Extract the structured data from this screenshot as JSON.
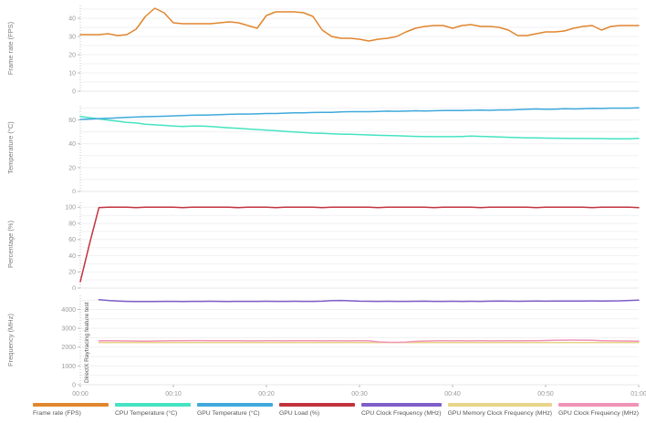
{
  "legend": {
    "items": [
      {
        "label": "Frame rate (FPS)",
        "color": "#E0862E"
      },
      {
        "label": "CPU Temperature (°C)",
        "color": "#45E3C2"
      },
      {
        "label": "GPU Temperature (°C)",
        "color": "#3FA9DC"
      },
      {
        "label": "GPU Load (%)",
        "color": "#C2333F"
      },
      {
        "label": "CPU Clock Frequency (MHz)",
        "color": "#7E5EC8"
      },
      {
        "label": "GPU Memory Clock Frequency (MHz)",
        "color": "#E8D48A"
      },
      {
        "label": "GPU Clock Frequency (MHz)",
        "color": "#F193B7"
      }
    ]
  },
  "xaxis": {
    "ticks": [
      "00:00",
      "00:10",
      "00:20",
      "00:30",
      "00:40",
      "00:50",
      "01:00"
    ],
    "tick_seconds": [
      0,
      10,
      20,
      30,
      40,
      50,
      60
    ],
    "xlim_seconds": [
      0,
      60
    ]
  },
  "chart_data": [
    {
      "type": "line",
      "ylabel": "Frame rate (FPS)",
      "ylim": [
        0,
        47
      ],
      "yticks": [
        0,
        10,
        20,
        30,
        40
      ],
      "grid_step": 5,
      "series": [
        {
          "name": "Frame rate (FPS)",
          "color": "#E0862E",
          "start": 0,
          "values": [
            31,
            31,
            31,
            31.5,
            30.5,
            31,
            34,
            41,
            45.5,
            43,
            37.5,
            37,
            37,
            37,
            37,
            37.5,
            38,
            37.5,
            36,
            34.5,
            41.5,
            43.5,
            43.5,
            43.5,
            43,
            41,
            33.5,
            30,
            29,
            29,
            28.5,
            27.5,
            28.5,
            29,
            30,
            32.5,
            34.5,
            35.5,
            36,
            36,
            34.5,
            36,
            36.5,
            35.5,
            35.5,
            35,
            33.5,
            30.5,
            30.5,
            31.5,
            32.5,
            32.5,
            33,
            34.5,
            35.5,
            36,
            33.5,
            35.5,
            36,
            36,
            36
          ]
        }
      ]
    },
    {
      "type": "line",
      "ylabel": "Temperature (°C)",
      "ylim": [
        0,
        72
      ],
      "yticks": [
        0,
        20,
        40,
        60
      ],
      "grid_step": 10,
      "series": [
        {
          "name": "CPU Temperature (°C)",
          "color": "#45E3C2",
          "start": 0,
          "values": [
            63,
            62,
            61,
            60,
            59,
            58,
            57.5,
            56.5,
            56,
            55.5,
            55,
            54.5,
            55,
            55,
            54.5,
            54,
            53.5,
            53,
            52.5,
            52,
            51.5,
            51,
            50.5,
            50,
            49.5,
            49,
            48.8,
            48.5,
            48.2,
            48,
            47.8,
            47.5,
            47.2,
            47,
            46.8,
            46.5,
            46.3,
            46.2,
            46,
            46,
            46,
            46.2,
            46.5,
            46.3,
            46,
            45.8,
            45.5,
            45.3,
            45,
            45,
            44.8,
            44.7,
            44.6,
            44.5,
            44.5,
            44.4,
            44.4,
            44.3,
            44.3,
            44.3,
            44.6
          ]
        },
        {
          "name": "GPU Temperature (°C)",
          "color": "#3FA9DC",
          "start": 0,
          "values": [
            60.5,
            60.8,
            61.2,
            61.5,
            61.8,
            62.2,
            62.5,
            62.8,
            63,
            63.2,
            63.5,
            63.8,
            64,
            64.2,
            64.3,
            64.5,
            64.8,
            65,
            65,
            65.2,
            65.5,
            65.5,
            65.8,
            66,
            66,
            66.3,
            66.5,
            66.5,
            66.8,
            67,
            67,
            67,
            67.2,
            67.5,
            67.3,
            67.5,
            67.8,
            67.6,
            67.8,
            68,
            68,
            68,
            68.2,
            68.3,
            68.2,
            68.5,
            68.5,
            68.7,
            69,
            69.3,
            69,
            69.2,
            69.5,
            69.3,
            69.5,
            69.8,
            69.7,
            70,
            70,
            70,
            70.2
          ]
        }
      ]
    },
    {
      "type": "line",
      "ylabel": "Percentage (%)",
      "ylim": [
        0,
        106
      ],
      "yticks": [
        0,
        20,
        40,
        60,
        80,
        100
      ],
      "grid_step": 10,
      "series": [
        {
          "name": "GPU Load (%)",
          "color": "#C2333F",
          "start": 0,
          "values": [
            8,
            55,
            99.5,
            100,
            100,
            100,
            99.5,
            100,
            100,
            100,
            100,
            99.5,
            100,
            100,
            100,
            100,
            100,
            99.5,
            100,
            100,
            100,
            99.5,
            100,
            100,
            100,
            100,
            99.5,
            100,
            100,
            100,
            100,
            100,
            99.5,
            100,
            100,
            100,
            100,
            100,
            99.5,
            100,
            100,
            100,
            100,
            99.5,
            100,
            100,
            100,
            100,
            100,
            99.5,
            100,
            100,
            100,
            100,
            100,
            99.5,
            100,
            100,
            100,
            100,
            99.5
          ]
        }
      ]
    },
    {
      "type": "line",
      "ylabel": "Frequency (MHz)",
      "ylim": [
        0,
        4750
      ],
      "yticks": [
        0,
        1000,
        2000,
        3000,
        4000
      ],
      "grid_step": 500,
      "annotation": "DirectX Raytracing feature test",
      "series": [
        {
          "name": "CPU Clock Frequency (MHz)",
          "color": "#7E5EC8",
          "start": 2,
          "values": [
            4520,
            4480,
            4450,
            4430,
            4420,
            4420,
            4425,
            4430,
            4430,
            4425,
            4430,
            4430,
            4435,
            4430,
            4425,
            4430,
            4430,
            4430,
            4435,
            4430,
            4430,
            4435,
            4430,
            4430,
            4440,
            4470,
            4480,
            4460,
            4440,
            4435,
            4430,
            4435,
            4430,
            4430,
            4435,
            4440,
            4430,
            4430,
            4435,
            4430,
            4435,
            4430,
            4440,
            4450,
            4440,
            4435,
            4440,
            4445,
            4440,
            4445,
            4450,
            4445,
            4450,
            4455,
            4450,
            4455,
            4460,
            4480,
            4500
          ]
        },
        {
          "name": "GPU Memory Clock Frequency (MHz)",
          "color": "#E8D48A",
          "start": 2,
          "values": [
            2240,
            2240,
            2240,
            2240,
            2240,
            2240,
            2240,
            2240,
            2240,
            2240,
            2240,
            2240,
            2240,
            2240,
            2240,
            2240,
            2240,
            2240,
            2240,
            2240,
            2240,
            2240,
            2240,
            2240,
            2240,
            2240,
            2240,
            2240,
            2240,
            2240,
            2240,
            2240,
            2240,
            2240,
            2240,
            2240,
            2240,
            2240,
            2240,
            2240,
            2240,
            2240,
            2240,
            2240,
            2240,
            2240,
            2240,
            2240,
            2240,
            2240,
            2240,
            2240,
            2240,
            2240,
            2240,
            2240,
            2240,
            2240,
            2240
          ]
        },
        {
          "name": "GPU Clock Frequency (MHz)",
          "color": "#F193B7",
          "start": 2,
          "values": [
            2330,
            2335,
            2330,
            2325,
            2320,
            2315,
            2320,
            2330,
            2335,
            2340,
            2345,
            2345,
            2340,
            2340,
            2335,
            2335,
            2330,
            2330,
            2335,
            2335,
            2330,
            2335,
            2340,
            2335,
            2330,
            2335,
            2330,
            2330,
            2335,
            2330,
            2280,
            2260,
            2255,
            2270,
            2300,
            2320,
            2330,
            2335,
            2330,
            2335,
            2330,
            2335,
            2330,
            2330,
            2335,
            2330,
            2335,
            2340,
            2350,
            2360,
            2370,
            2375,
            2370,
            2360,
            2340,
            2330,
            2325,
            2320,
            2315
          ]
        }
      ]
    }
  ]
}
